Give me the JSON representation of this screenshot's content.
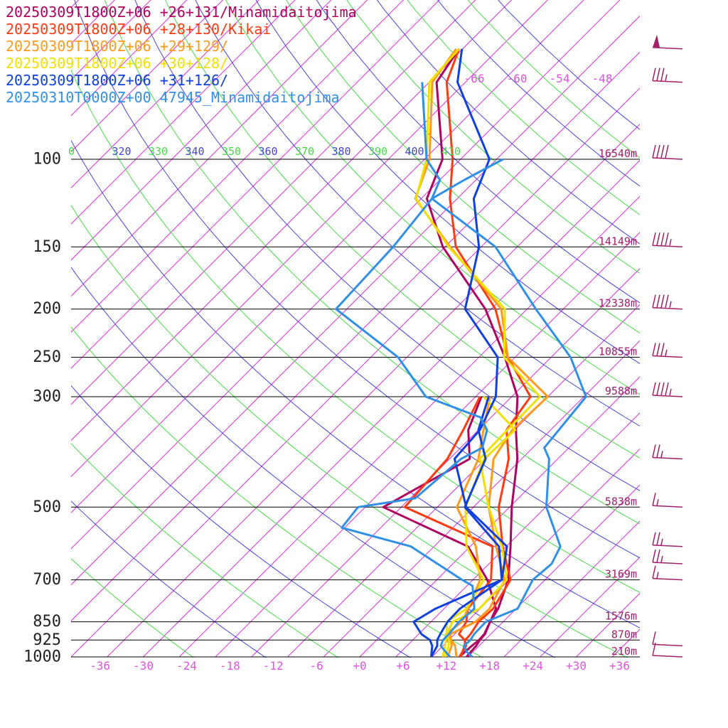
{
  "chart_data": {
    "type": "line",
    "legend": {
      "placement": "top-left",
      "entries": [
        {
          "label": "20250309T1800Z+06 +26+131/Minamidaitojima",
          "color": "#b00060"
        },
        {
          "label": "20250309T1800Z+06 +28+130/Kikai",
          "color": "#ff3a10"
        },
        {
          "label": "20250309T1800Z+06 +29+129/",
          "color": "#ff9a1a"
        },
        {
          "label": "20250309T1800Z+06 +30+128/",
          "color": "#f0e000"
        },
        {
          "label": "20250309T1800Z+06 +31+126/",
          "color": "#1040e0"
        },
        {
          "label": "20250310T0000Z+00 47945_Minamidaitojima",
          "color": "#3090e8"
        }
      ]
    },
    "y_axis": {
      "scale": "log",
      "range": [
        1000,
        100
      ],
      "ticks": [
        100,
        150,
        200,
        250,
        300,
        500,
        700,
        850,
        925,
        1000
      ],
      "tick_labels": [
        "100",
        "150",
        "200",
        "250",
        "300",
        "500",
        "700",
        "850",
        "925",
        "1000"
      ]
    },
    "x_axis": {
      "range": [
        -40,
        40
      ],
      "ticks": [
        -36,
        -30,
        -24,
        -18,
        -12,
        -6,
        0,
        6,
        12,
        18,
        24,
        30,
        36
      ],
      "tick_labels": [
        "-36",
        "-30",
        "-24",
        "-18",
        "-12",
        "-6",
        "+0",
        "+6",
        "+12",
        "+18",
        "+24",
        "+30",
        "+36"
      ]
    },
    "heights": [
      {
        "p": 100,
        "label": "16540m"
      },
      {
        "p": 150,
        "label": "14149m"
      },
      {
        "p": 200,
        "label": "12338m"
      },
      {
        "p": 250,
        "label": "10855m"
      },
      {
        "p": 300,
        "label": "9588m"
      },
      {
        "p": 500,
        "label": "5838m"
      },
      {
        "p": 700,
        "label": "3169m"
      },
      {
        "p": 850,
        "label": "1576m"
      },
      {
        "p": 925,
        "label": "870m"
      },
      {
        "p": 1000,
        "label": "210m"
      }
    ],
    "upper_temp_labels": [
      "-66",
      "-60",
      "-54",
      "-48"
    ],
    "theta_labels": [
      {
        "text": "0",
        "color": "#44dd44"
      },
      {
        "text": "320",
        "color": "#4444dd"
      },
      {
        "text": "330",
        "color": "#44dd44"
      },
      {
        "text": "340",
        "color": "#4444dd"
      },
      {
        "text": "350",
        "color": "#44dd44"
      },
      {
        "text": "360",
        "color": "#4444dd"
      },
      {
        "text": "370",
        "color": "#44dd44"
      },
      {
        "text": "380",
        "color": "#4444dd"
      },
      {
        "text": "390",
        "color": "#44dd44"
      },
      {
        "text": "400",
        "color": "#4444dd"
      },
      {
        "text": "410",
        "color": "#44dd44"
      }
    ],
    "colors": {
      "isotherm": "#dd33dd",
      "dry_adiabat_green": "#44dd44",
      "dry_adiabat_blue": "#4444dd",
      "isobar": "#000000",
      "tick_label": "#dd55dd",
      "height_label": "#a0206a",
      "wind_barb": "#a0206a"
    },
    "series": [
      {
        "color": "#b00060",
        "temperature": [
          [
            1000,
            14.8
          ],
          [
            950,
            14.6
          ],
          [
            925,
            14.3
          ],
          [
            900,
            14.2
          ],
          [
            850,
            13.2
          ],
          [
            800,
            12.5
          ],
          [
            700,
            9.9
          ],
          [
            600,
            5.6
          ],
          [
            500,
            0.3
          ],
          [
            400,
            -5.6
          ],
          [
            350,
            -9.8
          ],
          [
            300,
            -14.2
          ],
          [
            250,
            -21.4
          ],
          [
            200,
            -30.8
          ],
          [
            150,
            -45.3
          ],
          [
            120,
            -54.2
          ],
          [
            100,
            -57.5
          ],
          [
            70,
            -69.0
          ],
          [
            60,
            -70.5
          ]
        ],
        "dewpoint": [
          [
            1000,
            13.8
          ],
          [
            950,
            14.0
          ],
          [
            925,
            14.2
          ],
          [
            900,
            14.1
          ],
          [
            850,
            13.2
          ],
          [
            800,
            12.2
          ],
          [
            700,
            7.0
          ],
          [
            600,
            -0.3
          ],
          [
            500,
            -17.5
          ],
          [
            400,
            -12.2
          ],
          [
            350,
            -16.4
          ],
          [
            300,
            -19.2
          ]
        ]
      },
      {
        "color": "#ff3a10",
        "temperature": [
          [
            1000,
            14.0
          ],
          [
            950,
            13.0
          ],
          [
            925,
            12.3
          ],
          [
            900,
            12.2
          ],
          [
            850,
            11.6
          ],
          [
            800,
            11.8
          ],
          [
            700,
            10.2
          ],
          [
            600,
            4.5
          ],
          [
            500,
            -1.5
          ],
          [
            400,
            -6.8
          ],
          [
            350,
            -11.1
          ],
          [
            300,
            -12.4
          ],
          [
            250,
            -21.0
          ],
          [
            200,
            -29.4
          ],
          [
            150,
            -43.5
          ],
          [
            120,
            -51.0
          ],
          [
            100,
            -56.1
          ],
          [
            70,
            -67.6
          ],
          [
            60,
            -70.5
          ]
        ],
        "dewpoint": [
          [
            1000,
            13.8
          ],
          [
            950,
            13.2
          ],
          [
            925,
            12.2
          ],
          [
            900,
            10.6
          ],
          [
            850,
            9.9
          ],
          [
            800,
            8.3
          ],
          [
            700,
            7.5
          ],
          [
            600,
            3.1
          ],
          [
            500,
            -14.5
          ],
          [
            400,
            -15.3
          ],
          [
            350,
            -17.1
          ],
          [
            300,
            -19.4
          ]
        ]
      },
      {
        "color": "#ff9a1a",
        "temperature": [
          [
            1000,
            13.4
          ],
          [
            950,
            11.7
          ],
          [
            925,
            10.3
          ],
          [
            900,
            9.4
          ],
          [
            850,
            11.2
          ],
          [
            800,
            11.3
          ],
          [
            700,
            9.4
          ],
          [
            600,
            3.6
          ],
          [
            500,
            -2.9
          ],
          [
            400,
            -8.9
          ],
          [
            350,
            -10.3
          ],
          [
            300,
            -10.0
          ],
          [
            250,
            -21.0
          ],
          [
            200,
            -28.6
          ],
          [
            150,
            -44.3
          ],
          [
            120,
            -55.8
          ],
          [
            100,
            -59.3
          ],
          [
            70,
            -69.6
          ],
          [
            60,
            -70.9
          ]
        ],
        "dewpoint": [
          [
            1000,
            12.2
          ],
          [
            950,
            11.2
          ],
          [
            925,
            10.3
          ],
          [
            900,
            8.8
          ],
          [
            850,
            9.3
          ],
          [
            800,
            8.3
          ],
          [
            700,
            6.0
          ],
          [
            600,
            0.8
          ],
          [
            500,
            -7.3
          ],
          [
            400,
            -11.0
          ],
          [
            350,
            -14.3
          ],
          [
            300,
            -18.0
          ]
        ]
      },
      {
        "color": "#f0e000",
        "temperature": [
          [
            1000,
            11.8
          ],
          [
            950,
            10.8
          ],
          [
            925,
            10.0
          ],
          [
            900,
            8.9
          ],
          [
            850,
            8.0
          ],
          [
            800,
            9.9
          ],
          [
            700,
            9.7
          ],
          [
            600,
            4.4
          ],
          [
            500,
            -2.9
          ],
          [
            400,
            -10.8
          ],
          [
            350,
            -11.0
          ],
          [
            300,
            -11.1
          ],
          [
            250,
            -21.5
          ],
          [
            200,
            -28.1
          ],
          [
            150,
            -44.5
          ],
          [
            120,
            -55.7
          ],
          [
            100,
            -59.7
          ],
          [
            70,
            -70.0
          ],
          [
            60,
            -70.5
          ]
        ],
        "dewpoint": [
          [
            1000,
            11.5
          ],
          [
            950,
            10.3
          ],
          [
            925,
            9.6
          ],
          [
            900,
            8.9
          ],
          [
            850,
            7.2
          ],
          [
            800,
            8.1
          ],
          [
            700,
            6.5
          ],
          [
            600,
            -0.5
          ],
          [
            500,
            -6.1
          ],
          [
            400,
            -10.2
          ],
          [
            350,
            -9.9
          ],
          [
            300,
            -18.9
          ]
        ]
      },
      {
        "color": "#1040e0",
        "temperature": [
          [
            1000,
            9.9
          ],
          [
            950,
            9.2
          ],
          [
            925,
            8.4
          ],
          [
            900,
            8.0
          ],
          [
            850,
            7.3
          ],
          [
            800,
            7.2
          ],
          [
            700,
            9.0
          ],
          [
            600,
            5.1
          ],
          [
            500,
            -6.0
          ],
          [
            400,
            -14.3
          ],
          [
            350,
            -14.8
          ],
          [
            300,
            -17.2
          ],
          [
            250,
            -22.4
          ],
          [
            200,
            -33.6
          ],
          [
            150,
            -40.3
          ],
          [
            120,
            -47.7
          ],
          [
            100,
            -51.0
          ],
          [
            70,
            -66.1
          ],
          [
            60,
            -70.1
          ]
        ],
        "dewpoint": [
          [
            1000,
            9.9
          ],
          [
            950,
            8.5
          ],
          [
            925,
            7.4
          ],
          [
            900,
            5.4
          ],
          [
            850,
            2.6
          ],
          [
            800,
            3.8
          ],
          [
            700,
            9.0
          ],
          [
            600,
            4.0
          ],
          [
            500,
            -6.2
          ],
          [
            400,
            -10.0
          ],
          [
            350,
            -15.0
          ],
          [
            300,
            -18.2
          ]
        ]
      },
      {
        "color": "#3090e8",
        "temperature": [
          [
            1000,
            15.6
          ],
          [
            975,
            14.0
          ],
          [
            950,
            12.9
          ],
          [
            925,
            13.0
          ],
          [
            900,
            12.7
          ],
          [
            850,
            12.6
          ],
          [
            800,
            15.2
          ],
          [
            700,
            13.3
          ],
          [
            650,
            13.7
          ],
          [
            600,
            12.5
          ],
          [
            500,
            5.1
          ],
          [
            400,
            -1.2
          ],
          [
            380,
            -3.4
          ],
          [
            300,
            -4.7
          ],
          [
            250,
            -12.3
          ],
          [
            200,
            -23.8
          ],
          [
            150,
            -38.0
          ],
          [
            120,
            -53.5
          ],
          [
            110,
            -55.0
          ],
          [
            100,
            -59.7
          ],
          [
            70,
            -71.0
          ]
        ],
        "dewpoint": [
          [
            1000,
            12.5
          ],
          [
            975,
            11.1
          ],
          [
            950,
            9.7
          ],
          [
            925,
            9.2
          ],
          [
            900,
            9.2
          ],
          [
            850,
            8.9
          ],
          [
            800,
            9.2
          ],
          [
            720,
            5.8
          ],
          [
            700,
            3.5
          ],
          [
            600,
            -8.2
          ],
          [
            550,
            -20.4
          ],
          [
            500,
            -21.0
          ],
          [
            480,
            -14.3
          ],
          [
            400,
            -13.4
          ],
          [
            380,
            -12.0
          ],
          [
            350,
            -13.8
          ],
          [
            330,
            -16.5
          ],
          [
            300,
            -26.9
          ],
          [
            250,
            -36.2
          ],
          [
            200,
            -51.5
          ],
          [
            150,
            -52.2
          ],
          [
            120,
            -53.5
          ],
          [
            110,
            -51.6
          ],
          [
            100,
            -49.1
          ]
        ]
      }
    ],
    "wind_barbs": [
      {
        "p": 60,
        "speed_kt": 50
      },
      {
        "p": 70,
        "speed_kt": 35
      },
      {
        "p": 100,
        "speed_kt": 40
      },
      {
        "p": 150,
        "speed_kt": 45
      },
      {
        "p": 200,
        "speed_kt": 45
      },
      {
        "p": 250,
        "speed_kt": 35
      },
      {
        "p": 300,
        "speed_kt": 45
      },
      {
        "p": 400,
        "speed_kt": 25
      },
      {
        "p": 500,
        "speed_kt": 15
      },
      {
        "p": 600,
        "speed_kt": 25
      },
      {
        "p": 650,
        "speed_kt": 25
      },
      {
        "p": 700,
        "speed_kt": 15
      },
      {
        "p": 950,
        "speed_kt": 10
      },
      {
        "p": 1000,
        "speed_kt": 10
      }
    ]
  }
}
